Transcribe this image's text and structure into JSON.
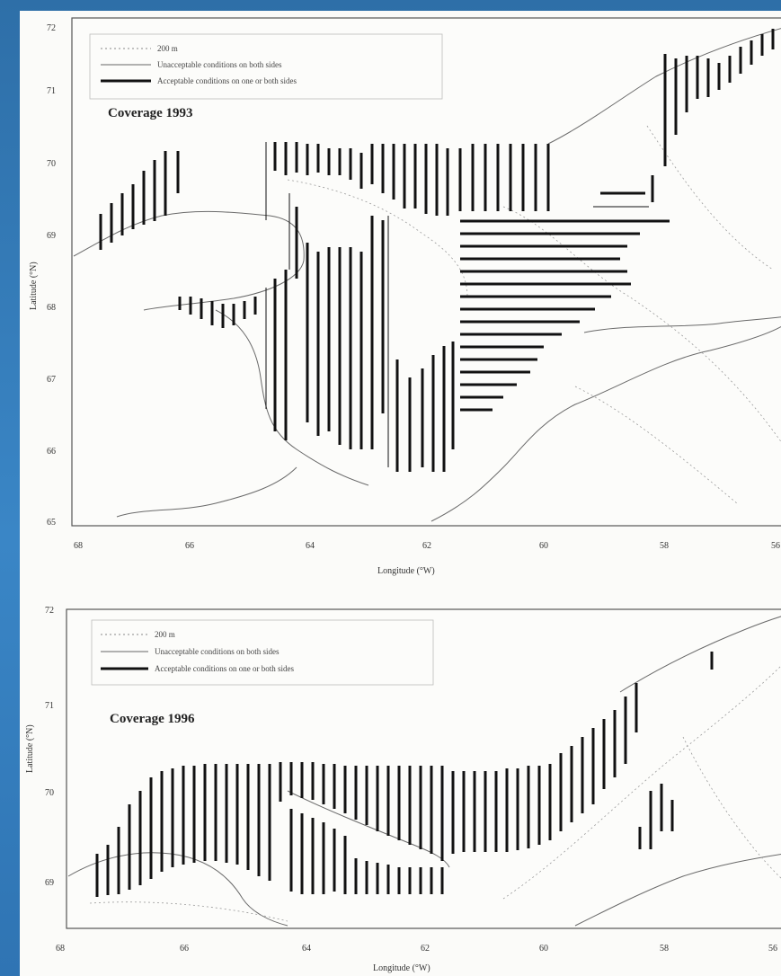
{
  "panels": [
    {
      "id": "coverage-1993",
      "coverage_label": "Coverage 1993",
      "legend": [
        {
          "style": "dotted",
          "label": "200 m"
        },
        {
          "style": "thin",
          "label": "Unacceptable conditions on both sides"
        },
        {
          "style": "thick",
          "label": "Acceptable conditions on one or both sides"
        }
      ],
      "y_ticks": [
        "72",
        "71",
        "70",
        "69",
        "68",
        "67",
        "66",
        "65"
      ],
      "x_ticks": [
        "68",
        "66",
        "64",
        "62",
        "60",
        "58",
        "56"
      ],
      "x_label": "Longitude (°W)",
      "y_label": "Latitude (°N)"
    },
    {
      "id": "coverage-1996",
      "coverage_label": "Coverage 1996",
      "legend": [
        {
          "style": "dotted",
          "label": "200 m"
        },
        {
          "style": "thin",
          "label": "Unacceptable conditions on both sides"
        },
        {
          "style": "thick",
          "label": "Acceptable conditions on one or both sides"
        }
      ],
      "y_ticks": [
        "72",
        "71",
        "70",
        "69"
      ],
      "x_ticks": [
        "68",
        "66",
        "64",
        "62",
        "60",
        "58",
        "56"
      ],
      "x_label": "Longitude (°W)",
      "y_label": "Latitude (°N)"
    }
  ]
}
